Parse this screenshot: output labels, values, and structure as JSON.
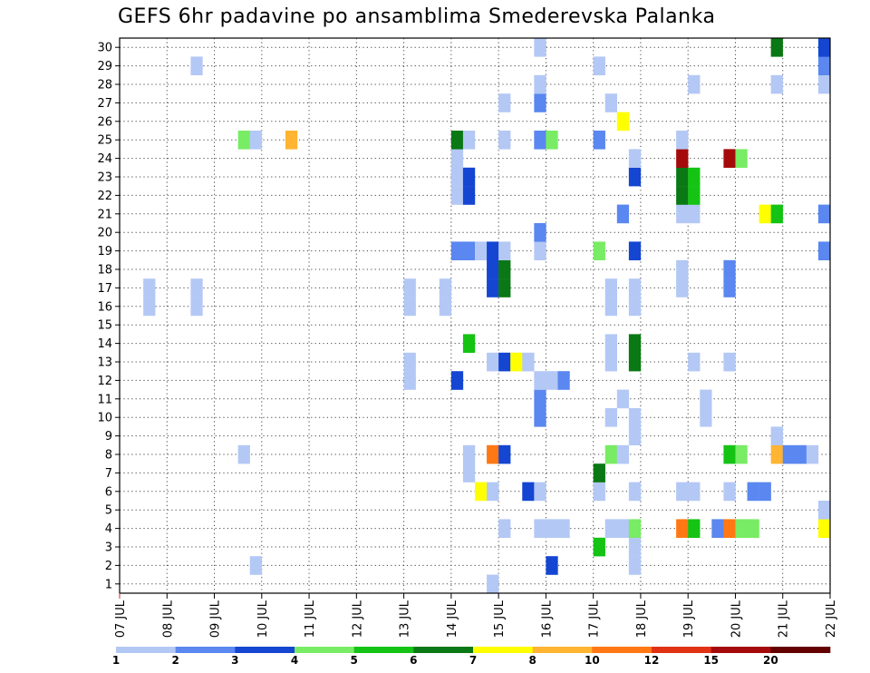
{
  "chart_data": {
    "type": "heatmap",
    "title": "GEFS 6hr padavine po ansamblima Smederevska Palanka",
    "xlabel": "",
    "ylabel": "",
    "x_tick_labels": [
      "07 JUL",
      "08 JUL",
      "09 JUL",
      "10 JUL",
      "11 JUL",
      "12 JUL",
      "13 JUL",
      "14 JUL",
      "15 JUL",
      "16 JUL",
      "17 JUL",
      "18 JUL",
      "19 JUL",
      "20 JUL",
      "21 JUL",
      "22 JUL"
    ],
    "y_tick_labels": [
      "1",
      "2",
      "3",
      "4",
      "5",
      "6",
      "7",
      "8",
      "9",
      "10",
      "11",
      "12",
      "13",
      "14",
      "15",
      "16",
      "17",
      "18",
      "19",
      "20",
      "21",
      "22",
      "23",
      "24",
      "25",
      "26",
      "27",
      "28",
      "29",
      "30"
    ],
    "x_range": [
      0,
      60
    ],
    "y_range": [
      0.5,
      30.5
    ],
    "grid": true,
    "legend": {
      "placement": "bottom",
      "labels": [
        "1",
        "2",
        "3",
        "4",
        "5",
        "6",
        "7",
        "8",
        "10",
        "12",
        "15",
        "20"
      ],
      "colors": [
        "#b4c8f5",
        "#5a87f0",
        "#1446d2",
        "#78ec64",
        "#14c314",
        "#0a7814",
        "#ffff00",
        "#ffb432",
        "#ff7814",
        "#e13214",
        "#a50a0a",
        "#640000"
      ]
    },
    "cells_description": "each cell: [6-hour step index from 07 JUL 00, ensemble member 1-30, color class index 0-11]",
    "cells": [
      [
        31,
        1,
        0
      ],
      [
        11,
        2,
        0
      ],
      [
        36,
        2,
        2
      ],
      [
        43,
        2,
        0
      ],
      [
        40,
        3,
        4
      ],
      [
        43,
        3,
        0
      ],
      [
        32,
        4,
        0
      ],
      [
        35,
        4,
        0
      ],
      [
        36,
        4,
        0
      ],
      [
        37,
        4,
        0
      ],
      [
        41,
        4,
        0
      ],
      [
        42,
        4,
        0
      ],
      [
        43,
        4,
        3
      ],
      [
        47,
        4,
        8
      ],
      [
        48,
        4,
        4
      ],
      [
        50,
        4,
        1
      ],
      [
        51,
        4,
        8
      ],
      [
        52,
        4,
        3
      ],
      [
        53,
        4,
        3
      ],
      [
        59,
        4,
        6
      ],
      [
        59,
        5,
        0
      ],
      [
        30,
        6,
        6
      ],
      [
        31,
        6,
        0
      ],
      [
        34,
        6,
        2
      ],
      [
        35,
        6,
        0
      ],
      [
        40,
        6,
        0
      ],
      [
        43,
        6,
        0
      ],
      [
        47,
        6,
        0
      ],
      [
        48,
        6,
        0
      ],
      [
        51,
        6,
        0
      ],
      [
        53,
        6,
        1
      ],
      [
        54,
        6,
        1
      ],
      [
        29,
        7,
        0
      ],
      [
        40,
        7,
        5
      ],
      [
        10,
        8,
        0
      ],
      [
        29,
        8,
        0
      ],
      [
        31,
        8,
        8
      ],
      [
        32,
        8,
        2
      ],
      [
        41,
        8,
        3
      ],
      [
        42,
        8,
        0
      ],
      [
        51,
        8,
        4
      ],
      [
        52,
        8,
        3
      ],
      [
        55,
        8,
        7
      ],
      [
        56,
        8,
        1
      ],
      [
        57,
        8,
        1
      ],
      [
        58,
        8,
        0
      ],
      [
        43,
        9,
        0
      ],
      [
        55,
        9,
        0
      ],
      [
        35,
        10,
        1
      ],
      [
        41,
        10,
        0
      ],
      [
        43,
        10,
        0
      ],
      [
        49,
        10,
        0
      ],
      [
        35,
        11,
        1
      ],
      [
        42,
        11,
        0
      ],
      [
        49,
        11,
        0
      ],
      [
        24,
        12,
        0
      ],
      [
        28,
        12,
        2
      ],
      [
        35,
        12,
        0
      ],
      [
        36,
        12,
        0
      ],
      [
        37,
        12,
        1
      ],
      [
        24,
        13,
        0
      ],
      [
        31,
        13,
        0
      ],
      [
        32,
        13,
        2
      ],
      [
        33,
        13,
        6
      ],
      [
        34,
        13,
        0
      ],
      [
        41,
        13,
        0
      ],
      [
        43,
        13,
        5
      ],
      [
        48,
        13,
        0
      ],
      [
        51,
        13,
        0
      ],
      [
        29,
        14,
        4
      ],
      [
        41,
        14,
        0
      ],
      [
        43,
        14,
        5
      ],
      [
        2,
        16,
        0
      ],
      [
        6,
        16,
        0
      ],
      [
        24,
        16,
        0
      ],
      [
        27,
        16,
        0
      ],
      [
        41,
        16,
        0
      ],
      [
        43,
        16,
        0
      ],
      [
        2,
        17,
        0
      ],
      [
        6,
        17,
        0
      ],
      [
        24,
        17,
        0
      ],
      [
        27,
        17,
        0
      ],
      [
        31,
        17,
        2
      ],
      [
        32,
        17,
        5
      ],
      [
        41,
        17,
        0
      ],
      [
        43,
        17,
        0
      ],
      [
        47,
        17,
        0
      ],
      [
        51,
        17,
        1
      ],
      [
        31,
        18,
        2
      ],
      [
        32,
        18,
        5
      ],
      [
        47,
        18,
        0
      ],
      [
        51,
        18,
        1
      ],
      [
        28,
        19,
        1
      ],
      [
        29,
        19,
        1
      ],
      [
        30,
        19,
        0
      ],
      [
        31,
        19,
        2
      ],
      [
        32,
        19,
        0
      ],
      [
        35,
        19,
        0
      ],
      [
        40,
        19,
        3
      ],
      [
        43,
        19,
        2
      ],
      [
        59,
        19,
        1
      ],
      [
        35,
        20,
        1
      ],
      [
        42,
        21,
        1
      ],
      [
        47,
        21,
        0
      ],
      [
        48,
        21,
        0
      ],
      [
        54,
        21,
        6
      ],
      [
        55,
        21,
        4
      ],
      [
        59,
        21,
        1
      ],
      [
        28,
        22,
        0
      ],
      [
        29,
        22,
        2
      ],
      [
        47,
        22,
        5
      ],
      [
        48,
        22,
        4
      ],
      [
        28,
        23,
        0
      ],
      [
        29,
        23,
        2
      ],
      [
        43,
        23,
        2
      ],
      [
        47,
        23,
        5
      ],
      [
        48,
        23,
        4
      ],
      [
        28,
        24,
        0
      ],
      [
        43,
        24,
        0
      ],
      [
        47,
        24,
        10
      ],
      [
        51,
        24,
        10
      ],
      [
        52,
        24,
        3
      ],
      [
        10,
        25,
        3
      ],
      [
        11,
        25,
        0
      ],
      [
        14,
        25,
        7
      ],
      [
        28,
        25,
        5
      ],
      [
        29,
        25,
        0
      ],
      [
        32,
        25,
        0
      ],
      [
        35,
        25,
        1
      ],
      [
        36,
        25,
        3
      ],
      [
        40,
        25,
        1
      ],
      [
        47,
        25,
        0
      ],
      [
        42,
        26,
        6
      ],
      [
        32,
        27,
        0
      ],
      [
        35,
        27,
        1
      ],
      [
        41,
        27,
        0
      ],
      [
        35,
        28,
        0
      ],
      [
        48,
        28,
        0
      ],
      [
        55,
        28,
        0
      ],
      [
        59,
        28,
        0
      ],
      [
        6,
        29,
        0
      ],
      [
        40,
        29,
        0
      ],
      [
        59,
        29,
        1
      ],
      [
        35,
        30,
        0
      ],
      [
        55,
        30,
        5
      ],
      [
        59,
        30,
        2
      ]
    ]
  }
}
